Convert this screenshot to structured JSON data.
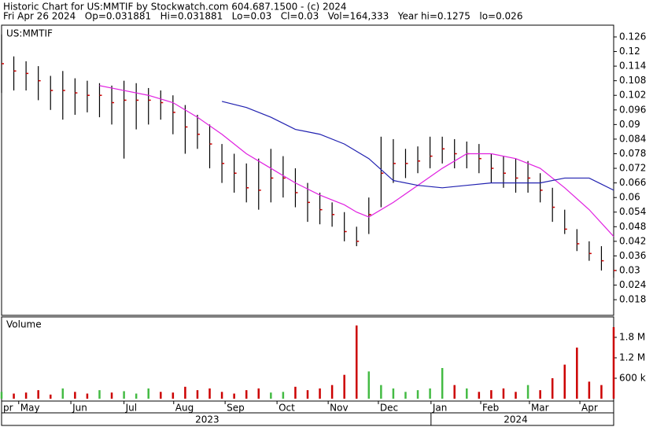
{
  "header": {
    "title": "Historic Chart for US:MMTIF by Stockwatch.com 604.687.1500 - (c) 2024",
    "quote": "Fri Apr 26 2024   Op=0.031881   Hi=0.031881   Lo=0.03   Cl=0.03   Vol=164,333   Year hi=0.1275   lo=0.026"
  },
  "chart_data": [
    {
      "type": "ohlc",
      "title": "US:MMTIF",
      "bar_color": "#000000",
      "close_color": "#cc0000",
      "x": [
        0,
        5,
        10,
        15,
        20,
        25,
        30,
        35,
        40,
        45,
        50,
        55,
        60,
        65,
        70,
        75,
        80,
        85,
        90,
        95,
        100,
        105,
        110,
        115,
        120,
        125,
        130,
        135,
        140,
        145,
        150,
        155,
        160,
        165,
        170,
        175,
        180,
        185,
        190,
        195,
        200,
        205,
        210,
        215,
        220,
        225,
        230,
        235,
        240,
        245,
        250
      ],
      "high": [
        0.127,
        0.118,
        0.116,
        0.114,
        0.11,
        0.112,
        0.109,
        0.108,
        0.107,
        0.106,
        0.108,
        0.107,
        0.105,
        0.104,
        0.102,
        0.098,
        0.094,
        0.09,
        0.082,
        0.078,
        0.074,
        0.076,
        0.08,
        0.077,
        0.072,
        0.066,
        0.062,
        0.058,
        0.054,
        0.048,
        0.06,
        0.085,
        0.084,
        0.08,
        0.081,
        0.085,
        0.085,
        0.084,
        0.083,
        0.082,
        0.078,
        0.077,
        0.076,
        0.075,
        0.07,
        0.064,
        0.055,
        0.047,
        0.042,
        0.04,
        0.035
      ],
      "low": [
        0.103,
        0.104,
        0.104,
        0.1,
        0.096,
        0.092,
        0.094,
        0.095,
        0.093,
        0.09,
        0.076,
        0.088,
        0.09,
        0.092,
        0.086,
        0.078,
        0.08,
        0.072,
        0.066,
        0.062,
        0.058,
        0.055,
        0.058,
        0.06,
        0.056,
        0.05,
        0.049,
        0.048,
        0.042,
        0.04,
        0.045,
        0.056,
        0.066,
        0.068,
        0.07,
        0.072,
        0.074,
        0.072,
        0.072,
        0.07,
        0.066,
        0.064,
        0.062,
        0.062,
        0.058,
        0.05,
        0.045,
        0.038,
        0.034,
        0.03,
        0.027
      ],
      "close": [
        0.115,
        0.112,
        0.111,
        0.108,
        0.104,
        0.104,
        0.103,
        0.102,
        0.102,
        0.099,
        0.1,
        0.1,
        0.1,
        0.099,
        0.095,
        0.089,
        0.086,
        0.082,
        0.074,
        0.07,
        0.064,
        0.063,
        0.068,
        0.068,
        0.062,
        0.058,
        0.055,
        0.053,
        0.046,
        0.042,
        0.053,
        0.07,
        0.074,
        0.074,
        0.075,
        0.077,
        0.08,
        0.078,
        0.078,
        0.076,
        0.072,
        0.07,
        0.068,
        0.068,
        0.063,
        0.056,
        0.047,
        0.041,
        0.037,
        0.034,
        0.03
      ],
      "lines": [
        {
          "color": "#e020e0",
          "x": [
            40,
            50,
            60,
            70,
            80,
            90,
            100,
            110,
            120,
            130,
            140,
            145,
            150,
            160,
            170,
            180,
            190,
            200,
            210,
            220,
            230,
            240,
            250
          ],
          "values": [
            0.106,
            0.104,
            0.102,
            0.099,
            0.093,
            0.086,
            0.078,
            0.072,
            0.066,
            0.061,
            0.057,
            0.054,
            0.052,
            0.058,
            0.065,
            0.072,
            0.078,
            0.078,
            0.076,
            0.072,
            0.064,
            0.055,
            0.044
          ]
        },
        {
          "color": "#2020b0",
          "x": [
            90,
            100,
            110,
            120,
            130,
            140,
            150,
            160,
            170,
            180,
            190,
            200,
            210,
            220,
            230,
            240,
            250
          ],
          "values": [
            0.0995,
            0.097,
            0.093,
            0.088,
            0.086,
            0.082,
            0.076,
            0.067,
            0.065,
            0.064,
            0.065,
            0.066,
            0.066,
            0.066,
            0.068,
            0.068,
            0.063
          ]
        }
      ],
      "xlim": [
        0,
        250
      ],
      "ylim": [
        0.0119,
        0.1289
      ],
      "yticks": [
        0.018,
        0.024,
        0.03,
        0.036,
        0.042,
        0.048,
        0.054,
        0.06,
        0.066,
        0.072,
        0.078,
        0.084,
        0.09,
        0.096,
        0.102,
        0.108,
        0.114,
        0.12,
        0.126
      ]
    },
    {
      "type": "volume",
      "title": "Volume",
      "up_color": "#44bb44",
      "down_color": "#cc0000",
      "values": [
        200000,
        150000,
        180000,
        250000,
        120000,
        300000,
        200000,
        150000,
        250000,
        180000,
        220000,
        150000,
        300000,
        200000,
        180000,
        350000,
        250000,
        300000,
        200000,
        150000,
        250000,
        300000,
        180000,
        200000,
        350000,
        250000,
        300000,
        400000,
        700000,
        2150000,
        800000,
        400000,
        300000,
        200000,
        250000,
        300000,
        900000,
        400000,
        300000,
        200000,
        250000,
        300000,
        200000,
        400000,
        250000,
        600000,
        1000000,
        1500000,
        500000,
        400000,
        2100000
      ],
      "ylim": [
        0,
        2400000
      ],
      "yticks": [
        {
          "value": 600000,
          "label": "600 k"
        },
        {
          "value": 1200000,
          "label": "1.2 M"
        },
        {
          "value": 1800000,
          "label": "1.8 M"
        }
      ],
      "xticks": [
        {
          "value": 0,
          "label": "pr"
        },
        {
          "value": 7,
          "label": "May"
        },
        {
          "value": 28.3,
          "label": "Jun"
        },
        {
          "value": 50,
          "label": "Jul"
        },
        {
          "value": 70.3,
          "label": "Aug"
        },
        {
          "value": 91.3,
          "label": "Sep"
        },
        {
          "value": 112.5,
          "label": "Oct"
        },
        {
          "value": 133.4,
          "label": "Nov"
        },
        {
          "value": 153.9,
          "label": "Dec"
        },
        {
          "value": 175.4,
          "label": "Jan"
        },
        {
          "value": 195.7,
          "label": "Feb"
        },
        {
          "value": 215.6,
          "label": "Mar"
        },
        {
          "value": 236.2,
          "label": "Apr"
        }
      ],
      "year_ticks": [
        {
          "value": 84,
          "label": "2023"
        },
        {
          "value": 210,
          "label": "2024"
        }
      ]
    }
  ]
}
